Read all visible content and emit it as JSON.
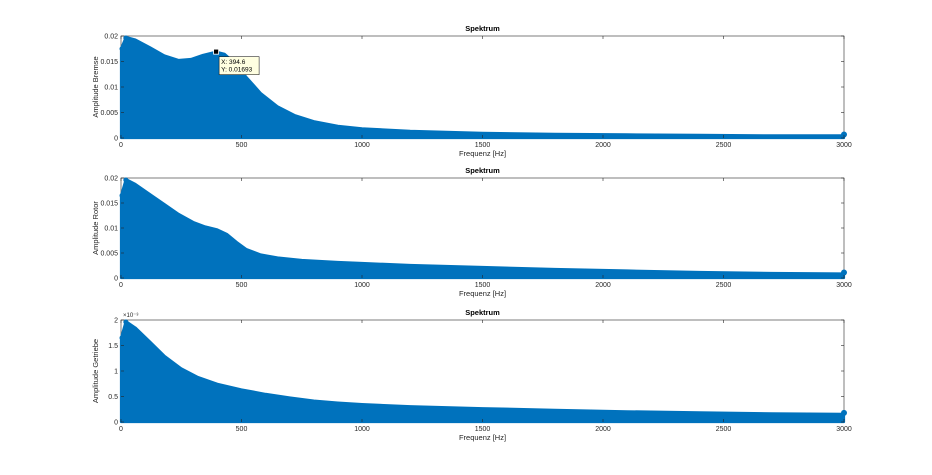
{
  "colors": {
    "series": "#0072bd",
    "axes": "#262626",
    "background": "#ffffff"
  },
  "chart_data": [
    {
      "type": "area",
      "title": "Spektrum",
      "xlabel": "Frequenz [Hz]",
      "ylabel": "Amplitude Bremse",
      "xlim": [
        0,
        3000
      ],
      "ylim": [
        0,
        0.02
      ],
      "xticks": [
        0,
        500,
        1000,
        1500,
        2000,
        2500,
        3000
      ],
      "xtick_labels": [
        "0",
        "500",
        "1000",
        "1500",
        "2000",
        "2500",
        "3000"
      ],
      "yticks": [
        0,
        0.005,
        0.01,
        0.015,
        0.02
      ],
      "ytick_labels": [
        "0",
        "0.005",
        "0.01",
        "0.015",
        "0.02"
      ],
      "exponent": "",
      "series": [
        {
          "x": [
            0,
            20,
            60,
            120,
            180,
            240,
            290,
            340,
            394.6,
            430,
            470,
            520,
            580,
            650,
            720,
            800,
            900,
            1000,
            1200,
            1500,
            1800,
            2100,
            2400,
            2700,
            3000
          ],
          "y": [
            0.0175,
            0.0198,
            0.0193,
            0.0178,
            0.0162,
            0.0153,
            0.0155,
            0.0163,
            0.01693,
            0.0165,
            0.0148,
            0.012,
            0.0088,
            0.0062,
            0.0045,
            0.0033,
            0.0024,
            0.0019,
            0.0014,
            0.001,
            0.0008,
            0.0007,
            0.0006,
            0.0005,
            0.0005
          ]
        }
      ],
      "datatip": {
        "x": 394.6,
        "y": 0.01693,
        "x_text": "X: 394.6",
        "y_text": "Y: 0.01693"
      }
    },
    {
      "type": "area",
      "title": "Spektrum",
      "xlabel": "Frequenz [Hz]",
      "ylabel": "Amplitude Rotor",
      "xlim": [
        0,
        3000
      ],
      "ylim": [
        0,
        0.02
      ],
      "xticks": [
        0,
        500,
        1000,
        1500,
        2000,
        2500,
        3000
      ],
      "xtick_labels": [
        "0",
        "500",
        "1000",
        "1500",
        "2000",
        "2500",
        "3000"
      ],
      "yticks": [
        0,
        0.005,
        0.01,
        0.015,
        0.02
      ],
      "ytick_labels": [
        "0",
        "0.005",
        "0.01",
        "0.015",
        "0.02"
      ],
      "exponent": "",
      "series": [
        {
          "x": [
            0,
            20,
            60,
            120,
            180,
            240,
            300,
            350,
            400,
            440,
            480,
            520,
            580,
            650,
            750,
            900,
            1000,
            1200,
            1500,
            1800,
            2100,
            2400,
            2700,
            3000
          ],
          "y": [
            0.0165,
            0.0198,
            0.0188,
            0.0168,
            0.0148,
            0.0128,
            0.0112,
            0.0103,
            0.0097,
            0.0088,
            0.0072,
            0.0058,
            0.0047,
            0.0041,
            0.0036,
            0.0032,
            0.003,
            0.0026,
            0.0022,
            0.0018,
            0.0015,
            0.0012,
            0.001,
            0.0009
          ]
        }
      ],
      "datatip": null
    },
    {
      "type": "area",
      "title": "Spektrum",
      "xlabel": "Frequenz [Hz]",
      "ylabel": "Amplitude Getriebe",
      "xlim": [
        0,
        3000
      ],
      "ylim": [
        0,
        0.002
      ],
      "xticks": [
        0,
        500,
        1000,
        1500,
        2000,
        2500,
        3000
      ],
      "xtick_labels": [
        "0",
        "500",
        "1000",
        "1500",
        "2000",
        "2500",
        "3000"
      ],
      "yticks": [
        0,
        0.0005,
        0.001,
        0.0015,
        0.002
      ],
      "ytick_labels": [
        "0",
        "0.5",
        "1",
        "1.5",
        "2"
      ],
      "exponent": "×10⁻³",
      "series": [
        {
          "x": [
            0,
            20,
            60,
            120,
            180,
            250,
            320,
            400,
            500,
            600,
            700,
            800,
            900,
            1000,
            1200,
            1500,
            1800,
            2100,
            2400,
            2700,
            3000
          ],
          "y": [
            0.00165,
            0.00198,
            0.00185,
            0.00158,
            0.0013,
            0.00105,
            0.00088,
            0.00075,
            0.00064,
            0.00055,
            0.00048,
            0.00042,
            0.00038,
            0.00035,
            0.00031,
            0.00027,
            0.00024,
            0.00021,
            0.00019,
            0.00017,
            0.00016
          ]
        }
      ],
      "datatip": null
    }
  ]
}
